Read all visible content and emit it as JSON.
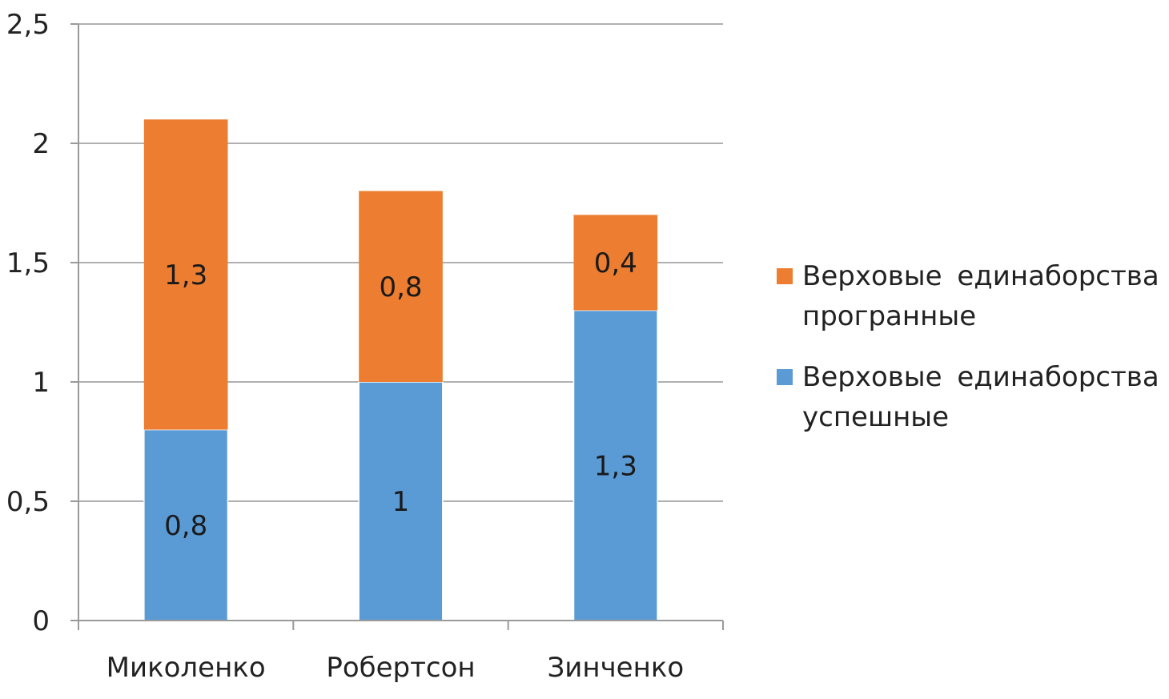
{
  "chart_data": {
    "type": "bar",
    "stacked": true,
    "categories": [
      "Миколенко",
      "Робертсон",
      "Зинченко"
    ],
    "series": [
      {
        "name": "Верховые единаборства успешные",
        "values": [
          0.8,
          1,
          1.3
        ],
        "labels": [
          "0,8",
          "1",
          "1,3"
        ],
        "color": "#5b9bd5"
      },
      {
        "name": "Верховые единаборства програнные",
        "values": [
          1.3,
          0.8,
          0.4
        ],
        "labels": [
          "1,3",
          "0,8",
          "0,4"
        ],
        "color": "#ed7d31"
      }
    ],
    "ylim": [
      0,
      2.5
    ],
    "yticks": [
      0,
      0.5,
      1,
      1.5,
      2,
      2.5
    ],
    "ytick_labels": [
      "0",
      "0,5",
      "1",
      "1,5",
      "2",
      "2,5"
    ],
    "grid": true,
    "legend_position": "right",
    "legend": [
      {
        "label": "Верховые единаборства програнные",
        "color": "#ed7d31"
      },
      {
        "label": "Верховые единаборства успешные",
        "color": "#5b9bd5"
      }
    ],
    "title": "",
    "xlabel": "",
    "ylabel": ""
  }
}
